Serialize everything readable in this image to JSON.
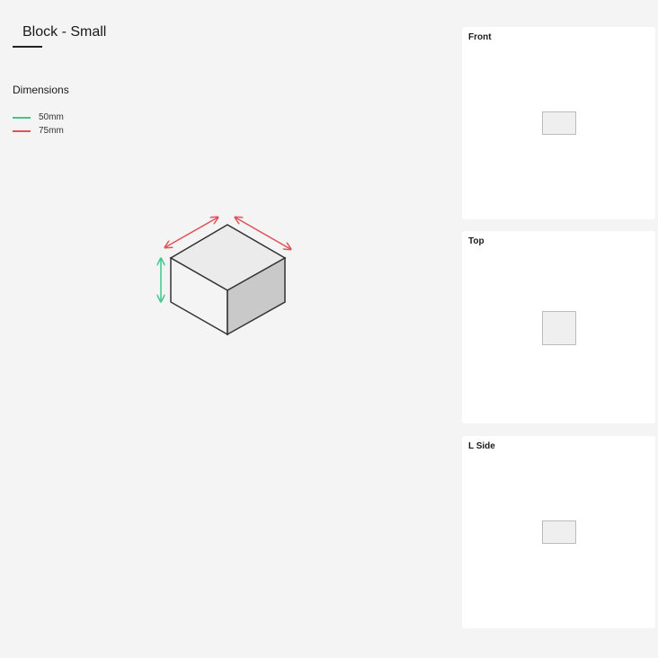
{
  "title": "Block - Small",
  "dimensions": {
    "heading": "Dimensions",
    "items": [
      {
        "label": "50mm",
        "color": "#3cc98a"
      },
      {
        "label": "75mm",
        "color": "#e0515a"
      }
    ]
  },
  "views": [
    {
      "label": "Front"
    },
    {
      "label": "Top"
    },
    {
      "label": "L Side"
    }
  ]
}
